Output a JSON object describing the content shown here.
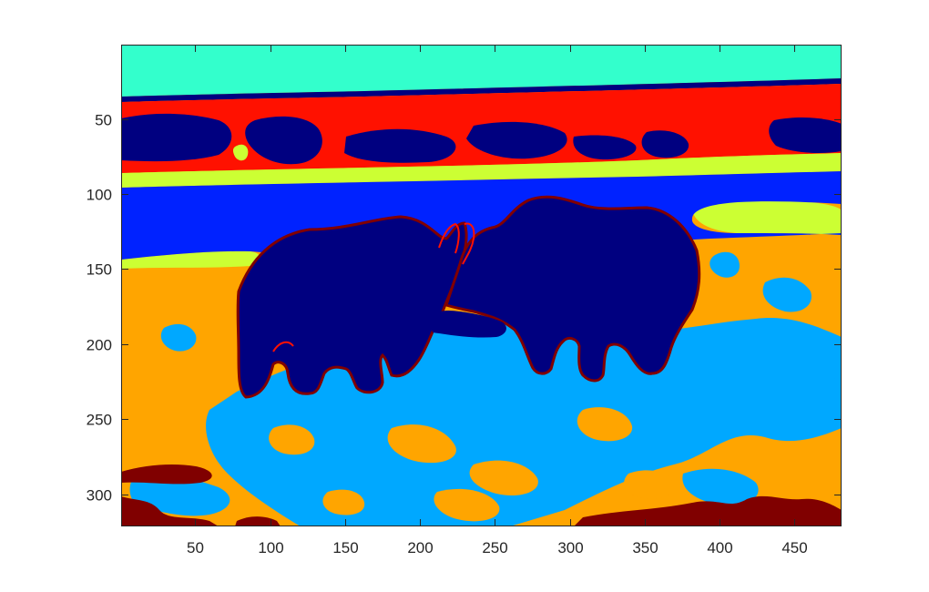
{
  "chart_data": {
    "type": "heatmap",
    "title": "",
    "xlabel": "",
    "ylabel": "",
    "xlim": [
      0.5,
      481.5
    ],
    "ylim": [
      0.5,
      321.5
    ],
    "y_reversed": true,
    "x_ticks": [
      50,
      100,
      150,
      200,
      250,
      300,
      350,
      400,
      450
    ],
    "y_ticks": [
      50,
      100,
      150,
      200,
      250,
      300
    ],
    "x_tick_labels": [
      "50",
      "100",
      "150",
      "200",
      "250",
      "300",
      "350",
      "400",
      "450"
    ],
    "y_tick_labels": [
      "50",
      "100",
      "150",
      "200",
      "250",
      "300"
    ],
    "grid": false,
    "legend": "none",
    "palette": {
      "navy": "#000080",
      "blue": "#0022ff",
      "sky": "#00a8ff",
      "cyan": "#33ffcc",
      "lime": "#ccff33",
      "orange": "#ffa500",
      "red": "#ff1100",
      "maroon": "#800000"
    },
    "regions": [
      {
        "label": "orange",
        "color": "#ffa500",
        "x": [
          1,
          481
        ],
        "y": [
          140,
          321
        ]
      },
      {
        "label": "sky",
        "color": "#00a8ff",
        "x": [
          130,
          450
        ],
        "y": [
          180,
          321
        ]
      },
      {
        "label": "cyan",
        "color": "#33ffcc",
        "x": [
          1,
          481
        ],
        "y": [
          1,
          35
        ]
      },
      {
        "label": "red",
        "color": "#ff1100",
        "x": [
          1,
          481
        ],
        "y": [
          28,
          88
        ]
      },
      {
        "label": "lime",
        "color": "#ccff33",
        "x": [
          1,
          481
        ],
        "y": [
          80,
          145
        ]
      },
      {
        "label": "blue",
        "color": "#0022ff",
        "x": [
          1,
          481
        ],
        "y": [
          90,
          140
        ]
      },
      {
        "label": "navy",
        "color": "#000080",
        "x": [
          75,
          390
        ],
        "y": [
          100,
          235
        ]
      },
      {
        "label": "maroon",
        "color": "#800000",
        "x": [
          1,
          481
        ],
        "y": [
          300,
          321
        ]
      }
    ]
  }
}
